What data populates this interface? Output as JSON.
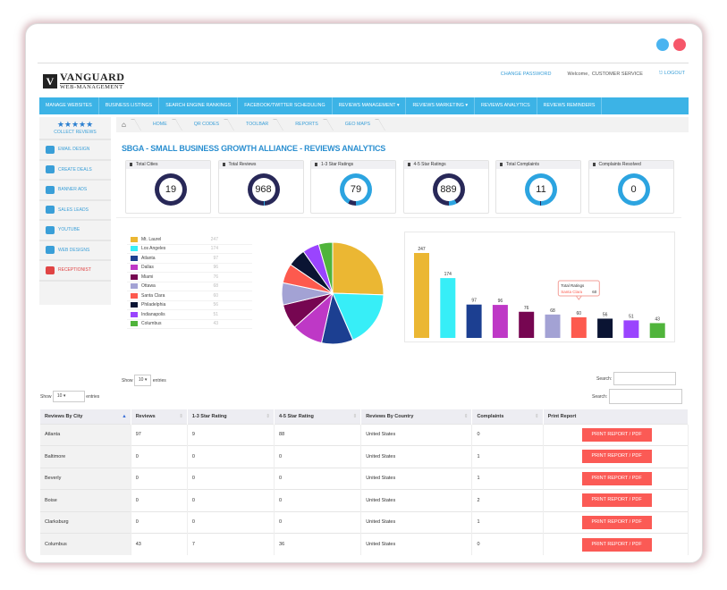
{
  "window": {
    "dot_colors": [
      "#4ab4f0",
      "#f6576a"
    ]
  },
  "brand": {
    "mark": "V",
    "name": "VANGUARD",
    "sub": "WEB-MANAGEMENT"
  },
  "toplinks": {
    "change_password": "CHANGE PASSWORD",
    "welcome": "Welcome,",
    "user": "CUSTOMER SERVICE",
    "logout": "LOGOUT"
  },
  "nav": [
    "MANAGE WEBSITES",
    "BUSINESS LISTINGS",
    "SEARCH ENGINE RANKINGS",
    "FACEBOOK/TWITTER SCHEDULING",
    "REVIEWS MANAGEMENT ▾",
    "REVIEWS MARKETING ▾",
    "REVIEWS ANALYTICS",
    "REVIEWS REMINDERS"
  ],
  "sidebar": {
    "top_stars": "★★★★★",
    "top_label": "COLLECT REVIEWS",
    "items": [
      {
        "label": "EMAIL DESIGN",
        "color": "#3a9fd8"
      },
      {
        "label": "CREATE DEALS",
        "color": "#3a9fd8"
      },
      {
        "label": "BANNER ADS",
        "color": "#3a9fd8"
      },
      {
        "label": "SALES LEADS",
        "color": "#3a9fd8"
      },
      {
        "label": "YOUTUBE",
        "color": "#3a9fd8"
      },
      {
        "label": "WEB DESIGNS",
        "color": "#3a9fd8"
      },
      {
        "label": "RECEPTIONIST",
        "color": "#e04444"
      }
    ]
  },
  "breadcrumb": [
    "HOME",
    "QR CODES",
    "TOOLBAR",
    "REPORTS",
    "GEO MAPS"
  ],
  "page_title": "SBGA - SMALL BUSINESS GROWTH ALLIANCE - REVIEWS ANALYTICS",
  "kpis": [
    {
      "label": "Total Cities",
      "value": "19",
      "fill": 1.0,
      "color": "#282858"
    },
    {
      "label": "Total Reviews",
      "value": "968",
      "fill": 0.99,
      "color": "#282858"
    },
    {
      "label": "1-3 Star Ratings",
      "value": "79",
      "fill": 0.08,
      "color": "#282858"
    },
    {
      "label": "4-5 Star Ratings",
      "value": "889",
      "fill": 0.92,
      "color": "#282858"
    },
    {
      "label": "Total Complaints",
      "value": "11",
      "fill": 0.01,
      "color": "#282858"
    },
    {
      "label": "Complaints Resolved",
      "value": "0",
      "fill": 0,
      "color": "#282858"
    }
  ],
  "chart_data": {
    "type": "bar",
    "categories": [
      "Mt. Laurel",
      "Los Angeles",
      "Atlanta",
      "Dallas",
      "Miami",
      "Ottawa",
      "Santa Clara",
      "Philadelphia",
      "Indianapolis",
      "Columbus"
    ],
    "values": [
      247,
      174,
      97,
      96,
      76,
      68,
      60,
      56,
      51,
      43
    ],
    "colors": [
      "#ebb733",
      "#37eef7",
      "#1c3f91",
      "#be38c6",
      "#760651",
      "#a3a2d4",
      "#fd5a4e",
      "#0a1433",
      "#9a44fe",
      "#50b43b"
    ],
    "tooltip": {
      "title": "Total Ratings",
      "label": "Santa Clara",
      "value": "60"
    }
  },
  "inner_table": {
    "show": "Show",
    "entries": "entries",
    "value": "10",
    "search": "Search:"
  },
  "table_controls": {
    "show": "Show",
    "entries": "entries",
    "value": "10",
    "search": "Search:"
  },
  "table": {
    "headers": [
      "Reviews By City",
      "Reviews",
      "1-3 Star Rating",
      "4-5 Star Rating",
      "Reviews By Country",
      "Complaints",
      "Print Report"
    ],
    "rows": [
      [
        "Atlanta",
        "97",
        "9",
        "88",
        "United States",
        "0"
      ],
      [
        "Baltimore",
        "0",
        "0",
        "0",
        "United States",
        "1"
      ],
      [
        "Beverly",
        "0",
        "0",
        "0",
        "United States",
        "1"
      ],
      [
        "Boise",
        "0",
        "0",
        "0",
        "United States",
        "2"
      ],
      [
        "Clarksburg",
        "0",
        "0",
        "0",
        "United States",
        "1"
      ],
      [
        "Columbus",
        "43",
        "7",
        "36",
        "United States",
        "0"
      ]
    ],
    "button": "PRINT REPORT / PDF"
  }
}
